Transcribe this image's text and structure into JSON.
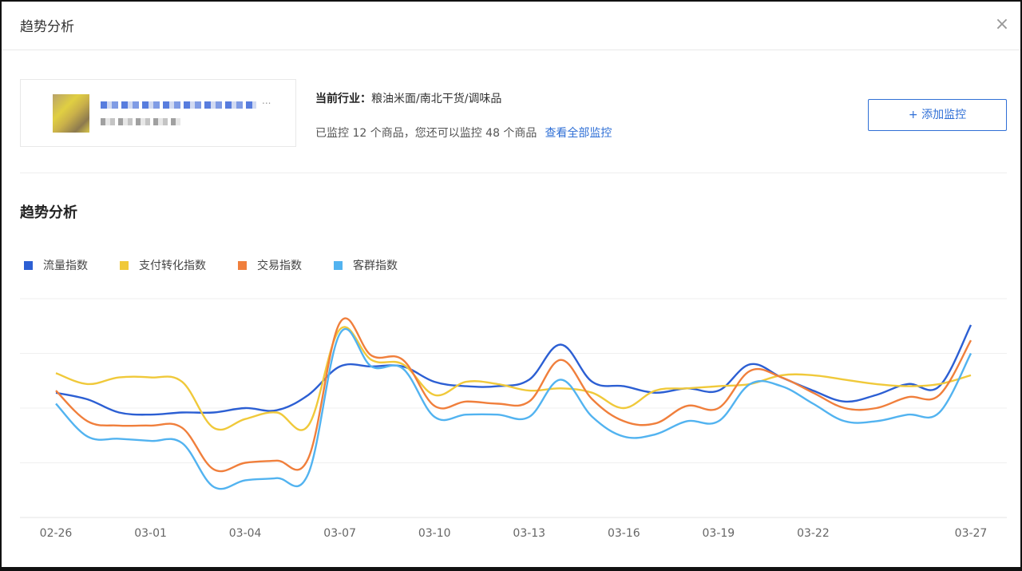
{
  "modal": {
    "title": "趋势分析",
    "close_label": "×"
  },
  "product": {
    "ellipsis": "..."
  },
  "info": {
    "industry_label": "当前行业：",
    "industry_value": "粮油米面/南北干货/调味品",
    "monitor_text": "已监控 12 个商品，您还可以监控 48 个商品",
    "view_all_link": "查看全部监控"
  },
  "add_button": {
    "label": "+ 添加监控"
  },
  "section": {
    "title": "趋势分析"
  },
  "chart_data": {
    "type": "line",
    "title": "",
    "xlabel": "",
    "ylabel": "",
    "ylim": [
      0,
      100
    ],
    "grid": true,
    "legend_placement": "top-left",
    "x": [
      "02-26",
      "02-27",
      "02-28",
      "03-01",
      "03-02",
      "03-03",
      "03-04",
      "03-05",
      "03-06",
      "03-07",
      "03-08",
      "03-09",
      "03-10",
      "03-11",
      "03-12",
      "03-13",
      "03-14",
      "03-15",
      "03-16",
      "03-17",
      "03-18",
      "03-19",
      "03-20",
      "03-21",
      "03-22",
      "03-23",
      "03-24",
      "03-25",
      "03-26",
      "03-27"
    ],
    "tick_labels": [
      "02-26",
      "03-01",
      "03-04",
      "03-07",
      "03-10",
      "03-13",
      "03-16",
      "03-19",
      "03-22",
      "03-27"
    ],
    "tick_indices": [
      0,
      3,
      6,
      9,
      12,
      15,
      18,
      21,
      24,
      29
    ],
    "series": [
      {
        "name": "流量指数",
        "color": "#2c5fd3",
        "values": [
          57,
          54,
          48,
          47,
          48,
          48,
          50,
          49,
          56,
          69,
          69,
          69,
          62,
          60,
          60,
          63,
          79,
          62,
          60,
          57,
          59,
          58,
          70,
          64,
          58,
          53,
          56,
          61,
          60,
          88
        ]
      },
      {
        "name": "支付转化指数",
        "color": "#f0c93a",
        "values": [
          66,
          61,
          64,
          64,
          62,
          41,
          45,
          48,
          42,
          86,
          72,
          70,
          56,
          62,
          61,
          58,
          59,
          57,
          50,
          58,
          59,
          60,
          61,
          65,
          65,
          63,
          61,
          60,
          61,
          65
        ]
      },
      {
        "name": "交易指数",
        "color": "#f07f3c",
        "values": [
          58,
          44,
          42,
          42,
          41,
          22,
          25,
          26,
          27,
          89,
          74,
          72,
          51,
          53,
          52,
          53,
          72,
          54,
          44,
          43,
          51,
          50,
          67,
          64,
          57,
          50,
          50,
          55,
          56,
          81
        ]
      },
      {
        "name": "客群指数",
        "color": "#52b3f0",
        "values": [
          52,
          37,
          36,
          35,
          34,
          14,
          17,
          18,
          20,
          84,
          69,
          68,
          46,
          47,
          47,
          46,
          63,
          46,
          37,
          38,
          44,
          44,
          61,
          60,
          52,
          44,
          44,
          47,
          48,
          75
        ]
      }
    ]
  }
}
